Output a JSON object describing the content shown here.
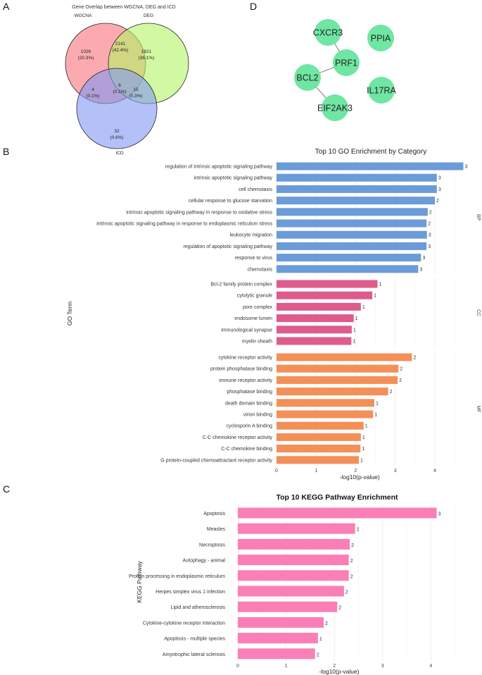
{
  "panels": {
    "a": "A",
    "b": "B",
    "c": "C",
    "d": "D"
  },
  "chart_data": [
    {
      "type": "venn",
      "title": "Gene Overlap between WGCNA, DEG and ICD",
      "sets": [
        {
          "name": "WGCNA",
          "color": "#f8737b"
        },
        {
          "name": "DEG",
          "color": "#b6f366"
        },
        {
          "name": "ICD",
          "color": "#8097f4"
        }
      ],
      "regions": [
        {
          "sets": [
            "WGCNA"
          ],
          "count": "1026",
          "pct": "(20.3%)"
        },
        {
          "sets": [
            "WGCNA",
            "DEG"
          ],
          "count": "2141",
          "pct": "(42.4%)"
        },
        {
          "sets": [
            "DEG"
          ],
          "count": "1821",
          "pct": "(36.1%)"
        },
        {
          "sets": [
            "WGCNA",
            "ICD"
          ],
          "count": "4",
          "pct": "(0.1%)"
        },
        {
          "sets": [
            "WGCNA",
            "DEG",
            "ICD"
          ],
          "count": "6",
          "pct": "(0.1%)"
        },
        {
          "sets": [
            "DEG",
            "ICD"
          ],
          "count": "15",
          "pct": "(0.3%)"
        },
        {
          "sets": [
            "ICD"
          ],
          "count": "32",
          "pct": "(0.6%)"
        }
      ]
    },
    {
      "type": "network",
      "nodes": [
        "CXCR3",
        "PPIA",
        "PRF1",
        "BCL2",
        "IL17RA",
        "EIF2AK3"
      ],
      "edges": [
        [
          "CXCR3",
          "PRF1"
        ],
        [
          "BCL2",
          "PRF1"
        ],
        [
          "BCL2",
          "EIF2AK3"
        ]
      ],
      "node_color": "#6fe6a3"
    },
    {
      "type": "bar",
      "orientation": "horizontal",
      "title": "Top 10 GO Enrichment by Category",
      "xlabel": "-log10(p-value)",
      "ylabel": "GO Term",
      "xlim": [
        0,
        4.8
      ],
      "xticks": [
        0,
        1,
        2,
        3,
        4
      ],
      "facets": [
        {
          "name": "BP",
          "color": "#6b9bd9",
          "terms": [
            "regulation of intrinsic apoptotic signaling pathway",
            "intrinsic apoptotic signaling pathway",
            "cell chemotaxis",
            "cellular response to glucose starvation",
            "intrinsic apoptotic signaling pathway in response to oxidative stress",
            "intrinsic apoptotic signaling pathway in response to endoplasmic reticulum stress",
            "leukocyte migration",
            "regulation of apoptotic signaling pathway",
            "response to virus",
            "chemotaxis"
          ],
          "values": [
            4.72,
            4.05,
            4.05,
            4.0,
            3.82,
            3.79,
            3.8,
            3.79,
            3.65,
            3.58
          ],
          "counts": [
            "3",
            "3",
            "3",
            "2",
            "2",
            "2",
            "3",
            "3",
            "3",
            "3"
          ]
        },
        {
          "name": "CC",
          "color": "#de5b8c",
          "terms": [
            "Bcl-2 family protein complex",
            "cytolytic granule",
            "pore complex",
            "endosome lumen",
            "immunological synapse",
            "myelin sheath"
          ],
          "values": [
            2.55,
            2.42,
            2.13,
            1.95,
            1.9,
            1.89
          ],
          "counts": [
            "1",
            "1",
            "1",
            "1",
            "1",
            "1"
          ]
        },
        {
          "name": "MF",
          "color": "#f48f58",
          "terms": [
            "cytokine receptor activity",
            "protein phosphatase binding",
            "immune receptor activity",
            "phosphatase binding",
            "death domain binding",
            "virion binding",
            "cyclosporin A binding",
            "C-C chemokine receptor activity",
            "C-C chemokine binding",
            "G protein-coupled chemoattractant receptor activity"
          ],
          "values": [
            3.42,
            3.08,
            3.06,
            2.82,
            2.47,
            2.44,
            2.2,
            2.13,
            2.12,
            2.08
          ],
          "counts": [
            "2",
            "2",
            "2",
            "2",
            "1",
            "1",
            "1",
            "1",
            "1",
            "1"
          ]
        }
      ]
    },
    {
      "type": "bar",
      "orientation": "horizontal",
      "title": "Top 10 KEGG Pathway Enrichment",
      "xlabel": "-log10(p-value)",
      "ylabel": "KEGG Pathway",
      "xlim": [
        0,
        4.2
      ],
      "xticks": [
        0,
        1,
        2,
        3,
        4
      ],
      "color": "#fa7fb7",
      "categories": [
        "Apoptosis",
        "Measles",
        "Necroptosis",
        "Autophagy - animal",
        "Protein processing in endoplasmic reticulum",
        "Herpes simplex virus 1 infection",
        "Lipid and atherosclerosis",
        "Cytokine-cytokine receptor interaction",
        "Apoptosis - multiple species",
        "Amyotrophic lateral sclerosis"
      ],
      "values": [
        4.12,
        2.43,
        2.32,
        2.3,
        2.3,
        2.2,
        2.06,
        1.78,
        1.66,
        1.6
      ],
      "counts": [
        "3",
        "2",
        "2",
        "2",
        "2",
        "2",
        "2",
        "2",
        "1",
        "2"
      ]
    }
  ]
}
